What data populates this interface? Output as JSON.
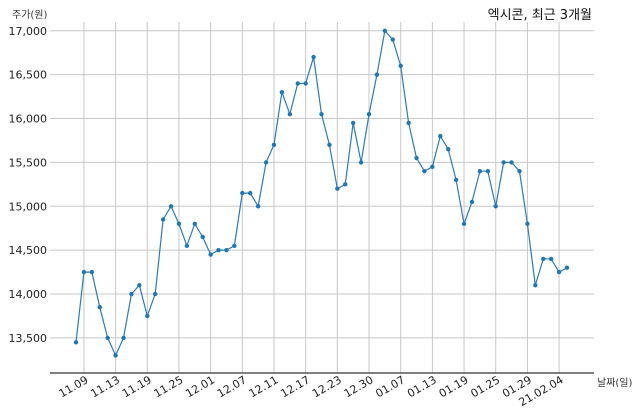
{
  "chart_data": {
    "type": "line",
    "title": "엑시콘, 최근 3개월",
    "xlabel": "날짜(일)",
    "ylabel": "주가(원)",
    "ylim": [
      13100,
      17100
    ],
    "yticks": [
      13500,
      14000,
      14500,
      15000,
      15500,
      16000,
      16500,
      17000
    ],
    "ytick_labels": [
      "13,500",
      "14,000",
      "14,500",
      "15,000",
      "15,500",
      "16,000",
      "16,500",
      "17,000"
    ],
    "xtick_labels": [
      "11.09",
      "11.13",
      "11.19",
      "11.25",
      "12.01",
      "12.07",
      "12.11",
      "12.17",
      "12.23",
      "12.30",
      "01.07",
      "01.13",
      "01.19",
      "01.25",
      "01.29",
      "21.02.04"
    ],
    "xtick_indices": [
      1,
      5,
      9,
      13,
      17,
      21,
      25,
      29,
      33,
      37,
      41,
      45,
      49,
      53,
      57,
      61
    ],
    "grid": true,
    "values": [
      13450,
      14250,
      14250,
      13850,
      13500,
      13300,
      13500,
      14000,
      14100,
      13750,
      14000,
      14850,
      15000,
      14800,
      14550,
      14800,
      14650,
      14450,
      14500,
      14500,
      14550,
      15150,
      15150,
      15000,
      15500,
      15700,
      16300,
      16050,
      16400,
      16400,
      16700,
      16050,
      15700,
      15200,
      15250,
      15950,
      15500,
      16050,
      16500,
      17000,
      16900,
      16600,
      15950,
      15550,
      15400,
      15450,
      15800,
      15650,
      15300,
      14800,
      15050,
      15400,
      15400,
      15000,
      15500,
      15500,
      15400,
      14800,
      14100,
      14400,
      14400,
      14250,
      14300
    ]
  }
}
